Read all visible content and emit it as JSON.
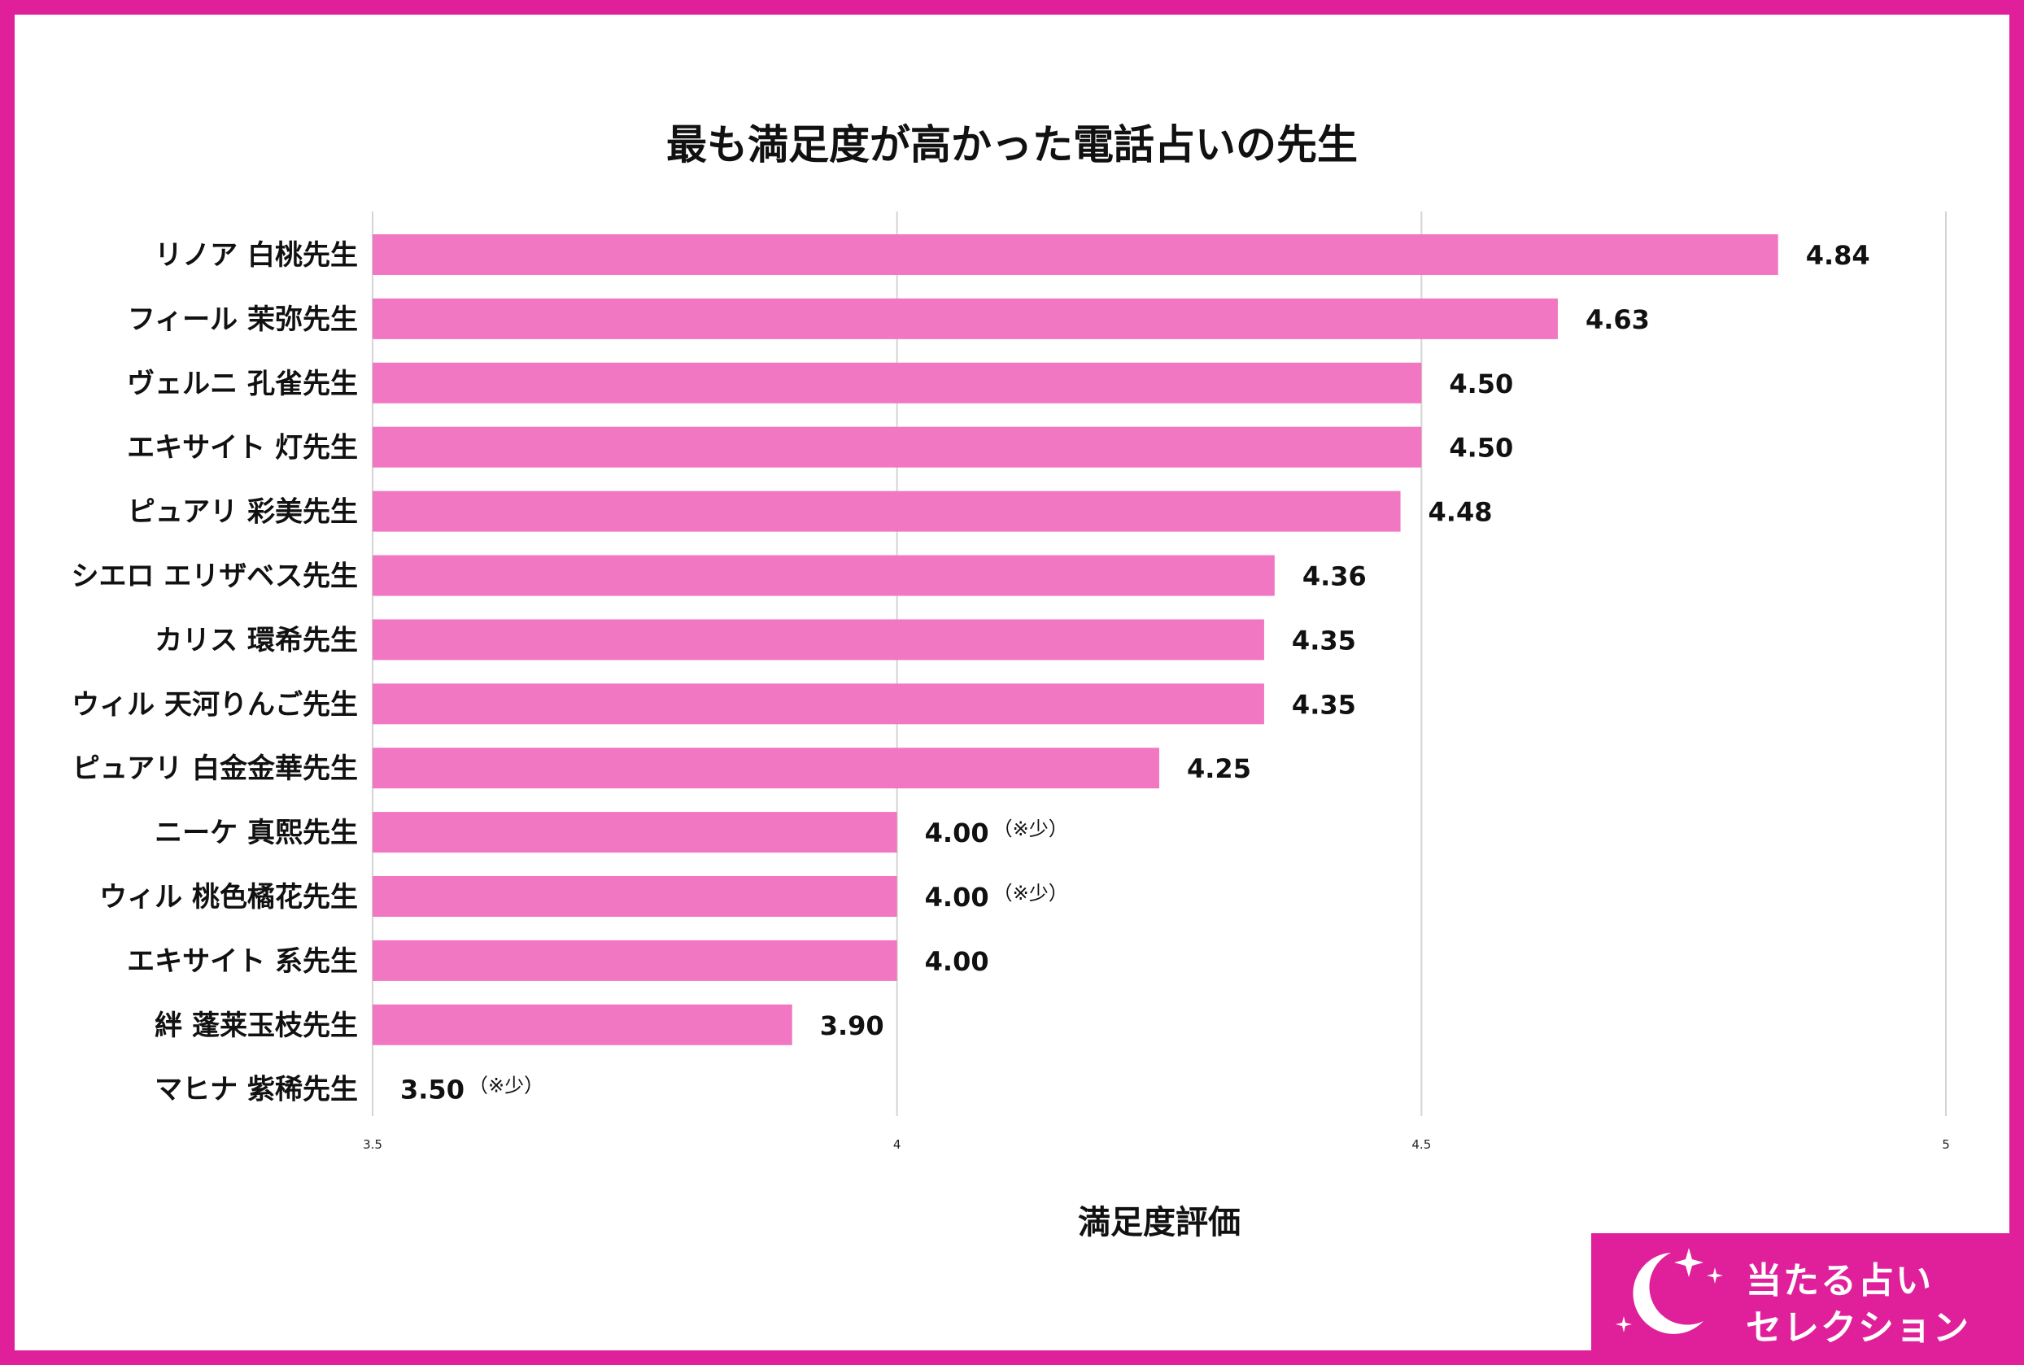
{
  "title": "最も満足度が高かった電話占いの先生",
  "brand": {
    "line1": "当たる占い",
    "line2": "セレクション",
    "bg_color": "#e0209a",
    "icon": "crescent-moon-with-stars-icon"
  },
  "colors": {
    "frame": "#e0209a",
    "bar": "#f277c3",
    "grid": "#d4d4d4"
  },
  "chart_data": {
    "type": "bar",
    "orientation": "horizontal",
    "title": "最も満足度が高かった電話占いの先生",
    "xlabel": "満足度評価",
    "ylabel": "",
    "xlim": [
      3.5,
      5
    ],
    "xticks": [
      "3.5",
      "4",
      "4.5",
      "5"
    ],
    "grid": "vertical",
    "categories": [
      "リノア 白桃先生",
      "フィール 茉弥先生",
      "ヴェルニ 孔雀先生",
      "エキサイト 灯先生",
      "ピュアリ 彩美先生",
      "シエロ エリザベス先生",
      "カリス 環希先生",
      "ウィル 天河りんご先生",
      "ピュアリ 白金金華先生",
      "ニーケ 真熙先生",
      "ウィル 桃色橘花先生",
      "エキサイト 系先生",
      "絆 蓬莱玉枝先生",
      "マヒナ 紫稀先生"
    ],
    "values": [
      4.84,
      4.63,
      4.5,
      4.5,
      4.48,
      4.36,
      4.35,
      4.35,
      4.25,
      4.0,
      4.0,
      4.0,
      3.9,
      3.5
    ],
    "value_labels": [
      "4.84",
      "4.63",
      "4.50",
      "4.50",
      "4.48",
      "4.36",
      "4.35",
      "4.35",
      "4.25",
      "4.00",
      "4.00",
      "4.00",
      "3.90",
      "3.50"
    ],
    "notes": [
      "",
      "",
      "",
      "",
      "",
      "",
      "",
      "",
      "",
      "（※少）",
      "（※少）",
      "",
      "",
      "（※少）"
    ]
  }
}
